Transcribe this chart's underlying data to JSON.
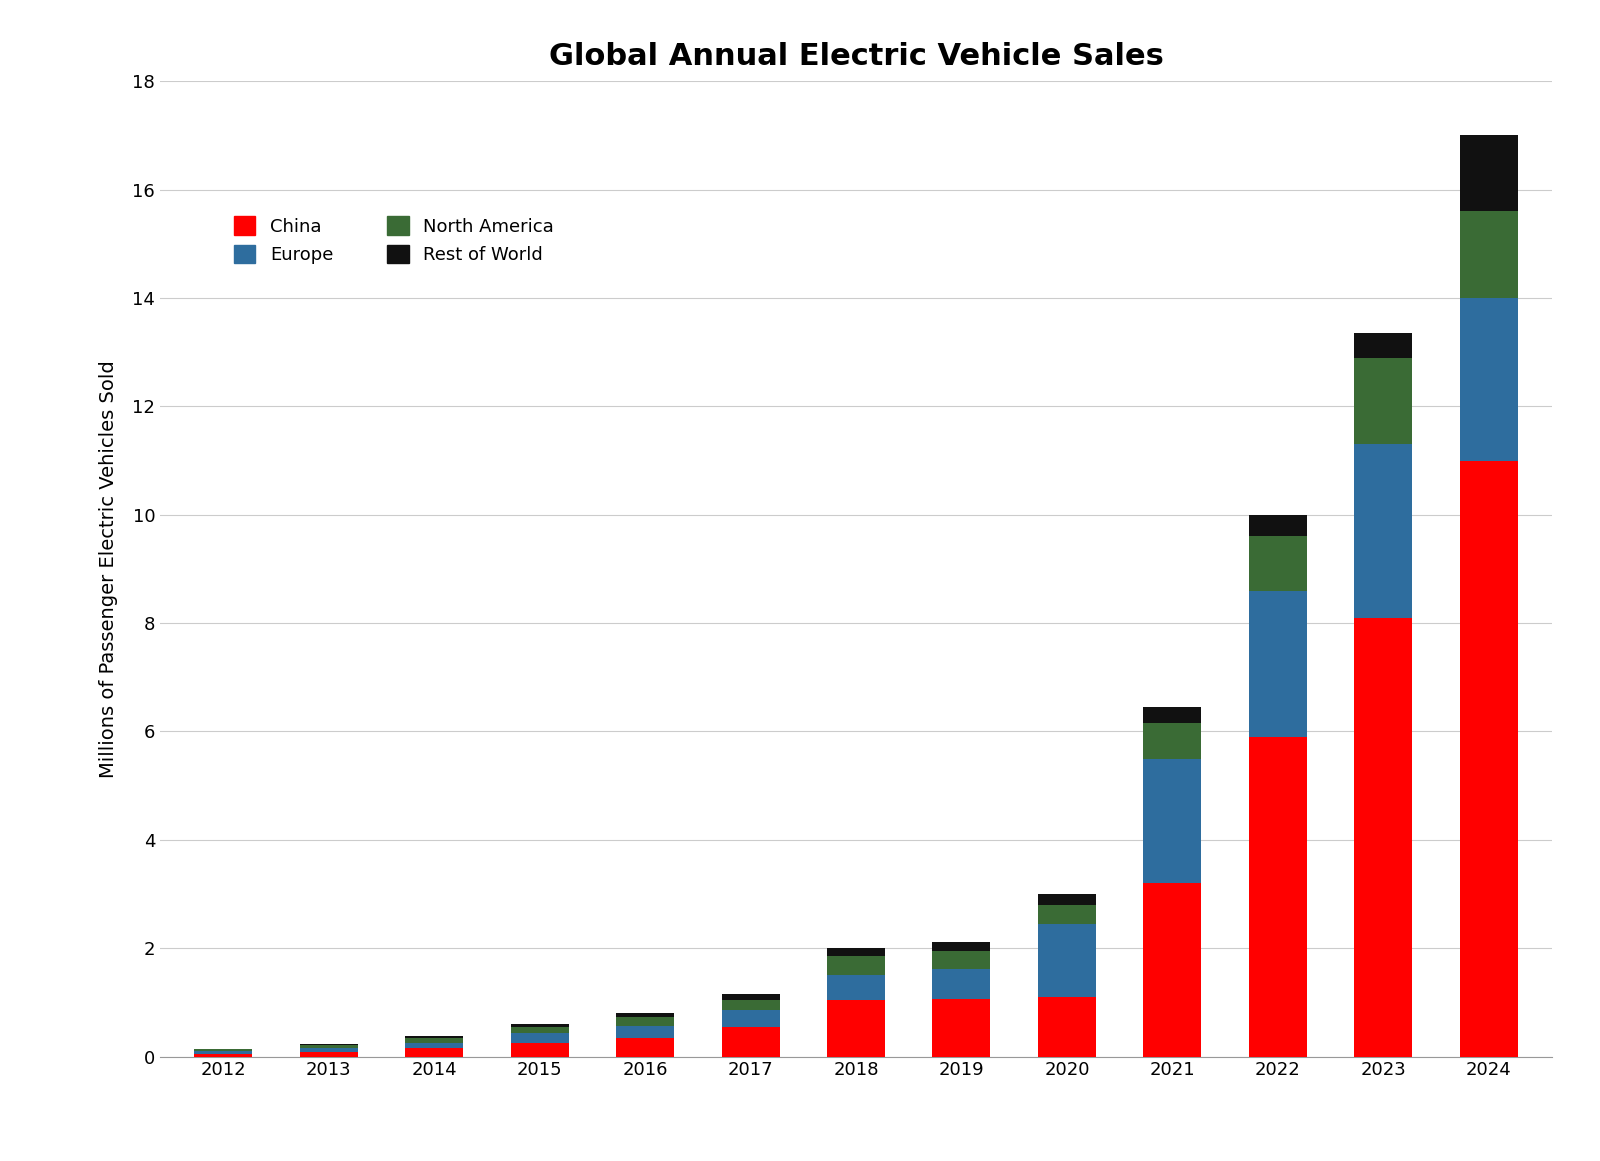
{
  "title": "Global Annual Electric Vehicle Sales",
  "ylabel": "Millions of Passenger Electric Vehicles Sold",
  "years": [
    2012,
    2013,
    2014,
    2015,
    2016,
    2017,
    2018,
    2019,
    2020,
    2021,
    2022,
    2023,
    2024
  ],
  "china": [
    0.05,
    0.08,
    0.15,
    0.25,
    0.35,
    0.55,
    1.05,
    1.06,
    1.1,
    3.2,
    5.9,
    8.1,
    11.0
  ],
  "europe": [
    0.05,
    0.07,
    0.1,
    0.18,
    0.22,
    0.3,
    0.45,
    0.55,
    1.35,
    2.3,
    2.7,
    3.2,
    3.0
  ],
  "north_america": [
    0.03,
    0.07,
    0.1,
    0.12,
    0.16,
    0.2,
    0.35,
    0.33,
    0.35,
    0.65,
    1.0,
    1.6,
    1.6
  ],
  "rest_of_world": [
    0.01,
    0.02,
    0.03,
    0.05,
    0.07,
    0.1,
    0.15,
    0.18,
    0.2,
    0.3,
    0.4,
    0.45,
    1.4
  ],
  "color_china": "#ff0000",
  "color_europe": "#2e6d9e",
  "color_north_america": "#3a6b35",
  "color_rest_of_world": "#111111",
  "ylim": [
    0,
    18
  ],
  "yticks": [
    0,
    2,
    4,
    6,
    8,
    10,
    12,
    14,
    16,
    18
  ],
  "background_color": "#ffffff",
  "grid_color": "#cccccc",
  "title_fontsize": 22,
  "label_fontsize": 14,
  "tick_fontsize": 13,
  "legend_fontsize": 13,
  "bar_width": 0.55
}
